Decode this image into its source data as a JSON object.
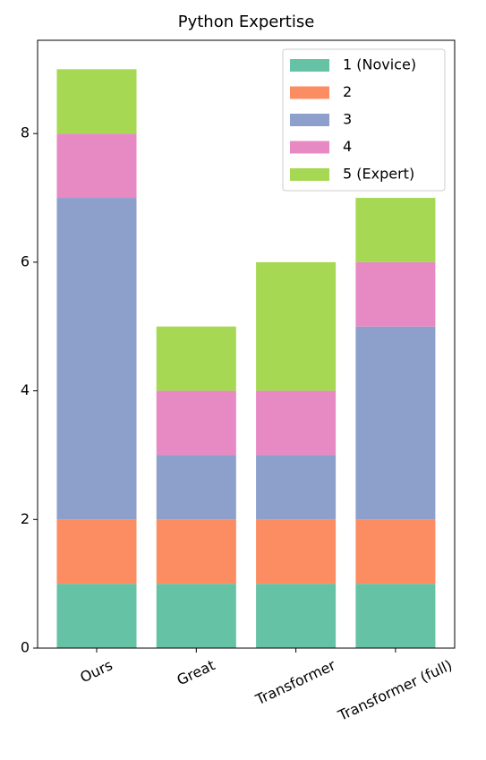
{
  "chart_data": {
    "type": "bar",
    "stacked": true,
    "title": "Python Expertise",
    "categories": [
      "Ours",
      "Great",
      "Transformer",
      "Transformer (full)"
    ],
    "series": [
      {
        "name": "1 (Novice)",
        "color": "#66c2a5",
        "values": [
          1,
          1,
          1,
          1
        ]
      },
      {
        "name": "2",
        "color": "#fc8d62",
        "values": [
          1,
          1,
          1,
          1
        ]
      },
      {
        "name": "3",
        "color": "#8da0cb",
        "values": [
          5,
          1,
          1,
          3
        ]
      },
      {
        "name": "4",
        "color": "#e78ac3",
        "values": [
          1,
          1,
          1,
          1
        ]
      },
      {
        "name": "5 (Expert)",
        "color": "#a6d854",
        "values": [
          1,
          1,
          2,
          1
        ]
      }
    ],
    "ylim": [
      0,
      9.45
    ],
    "yticks": [
      0,
      2,
      4,
      6,
      8
    ],
    "grid": false,
    "legend": "upper right"
  }
}
